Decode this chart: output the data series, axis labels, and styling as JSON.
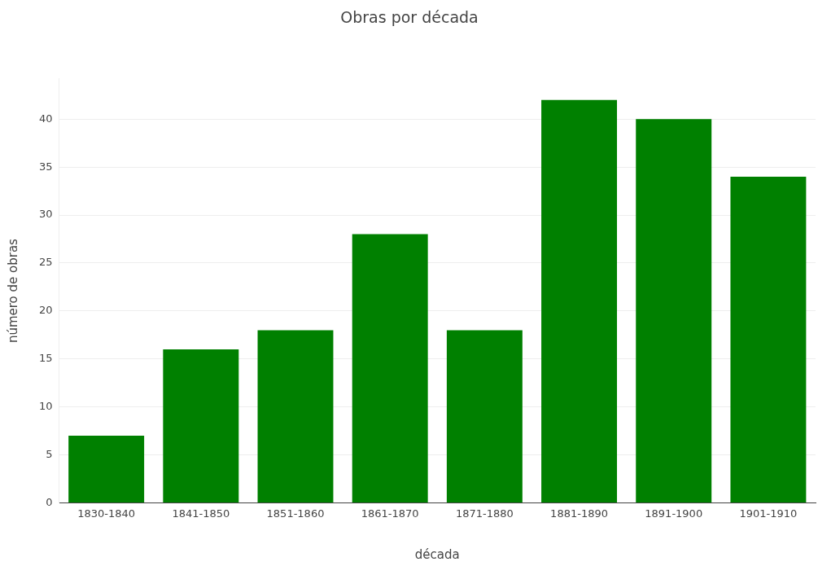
{
  "chart_data": {
    "type": "bar",
    "title": "Obras por década",
    "xlabel": "década",
    "ylabel": "número de obras",
    "categories": [
      "1830-1840",
      "1841-1850",
      "1851-1860",
      "1861-1870",
      "1871-1880",
      "1881-1890",
      "1891-1900",
      "1901-1910"
    ],
    "values": [
      7,
      16,
      18,
      28,
      18,
      42,
      40,
      34
    ],
    "color": "#008000",
    "ylim": [
      0,
      44.2
    ],
    "yticks": [
      0,
      5,
      10,
      15,
      20,
      25,
      30,
      35,
      40
    ],
    "grid": "y",
    "legend": false
  }
}
